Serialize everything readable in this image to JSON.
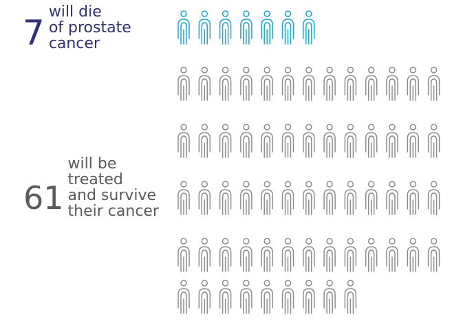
{
  "died": {
    "count": 7,
    "number": "7",
    "lines": [
      "will die",
      "of prostate",
      "cancer"
    ],
    "color": "#2f2f7a",
    "icon_color": "#17a8d8"
  },
  "survived": {
    "count": 61,
    "number": "61",
    "lines": [
      "will be",
      "treated",
      "and survive",
      "their cancer"
    ],
    "color": "#5a5a5a",
    "icon_color": "#8c8c8c"
  },
  "icon": "person-icon"
}
